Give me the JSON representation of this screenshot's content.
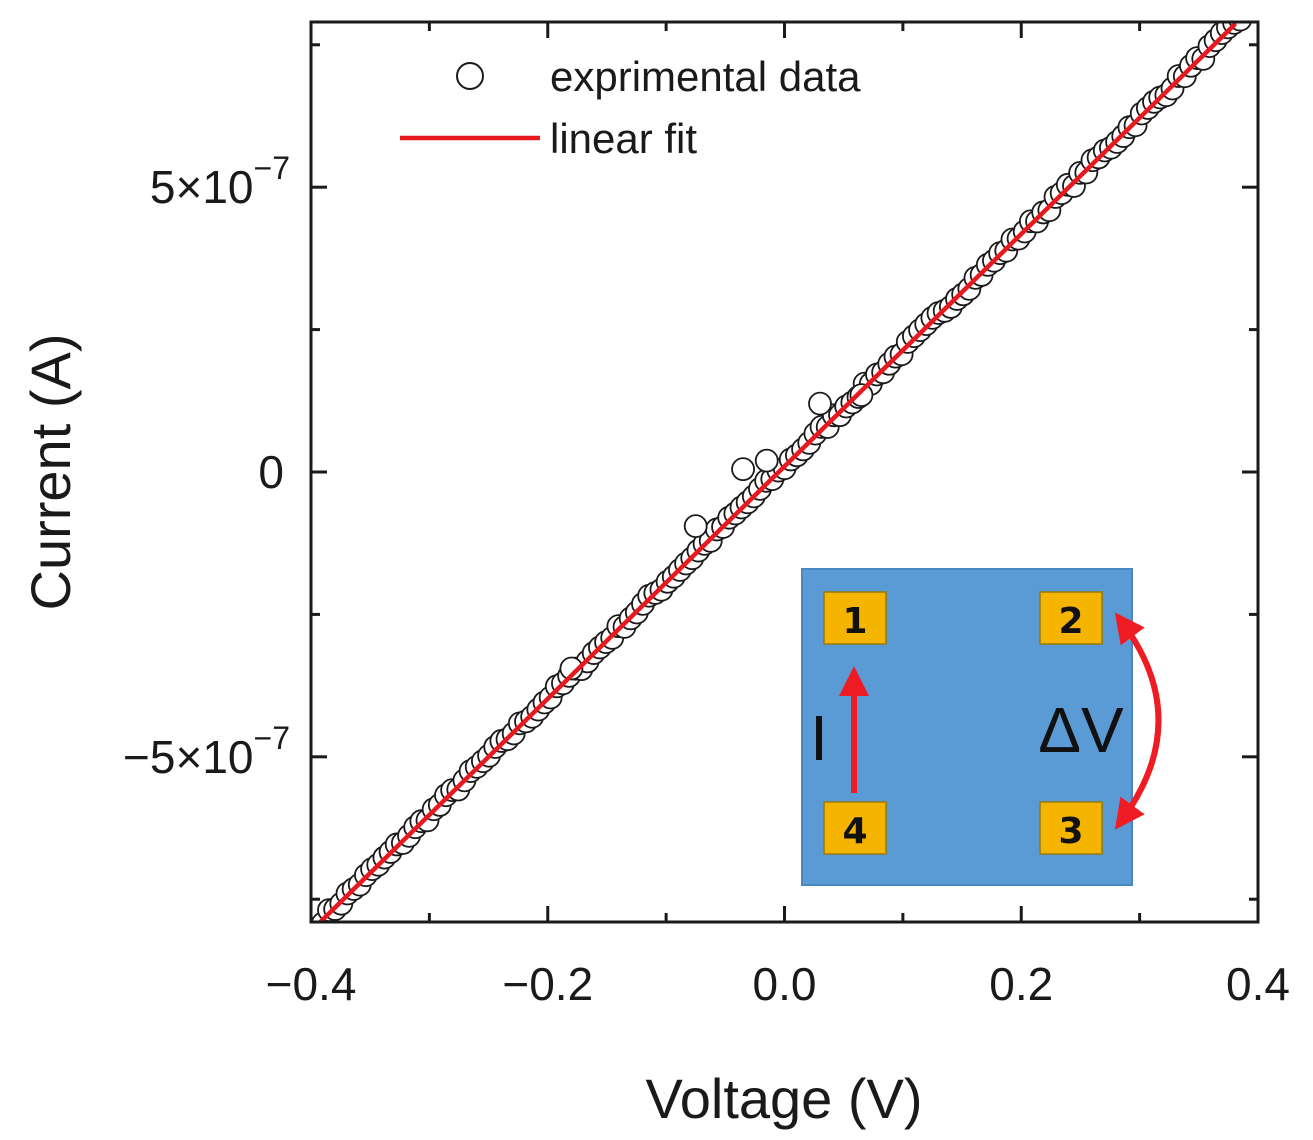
{
  "chart_data": {
    "type": "scatter",
    "title": "",
    "xlabel": "Voltage (V)",
    "ylabel": "Current (A)",
    "xlim": [
      -0.4,
      0.4
    ],
    "ylim": [
      -7.9e-07,
      7.9e-07
    ],
    "x_ticks": [
      {
        "value": -0.4,
        "label": "−0.4"
      },
      {
        "value": -0.2,
        "label": "−0.2"
      },
      {
        "value": 0.0,
        "label": "0.0"
      },
      {
        "value": 0.2,
        "label": "0.2"
      },
      {
        "value": 0.4,
        "label": "0.4"
      }
    ],
    "y_ticks": [
      {
        "value": -5e-07,
        "label": "−5×10",
        "exp": "−7"
      },
      {
        "value": 0,
        "label": "0",
        "exp": ""
      },
      {
        "value": 5e-07,
        "label": "5×10",
        "exp": "−7"
      }
    ],
    "x_minor_step": 0.1,
    "y_minor_step": 2.5e-07,
    "grid": false,
    "legend_position": "top-left",
    "series": [
      {
        "name": "exprimental data",
        "kind": "scatter",
        "marker": "open-circle",
        "color": "#1a1a1a",
        "x_range": [
          -0.39,
          0.385
        ],
        "point_count": 150,
        "slope_A_per_V": 2.04e-06,
        "intercept_A": 1e-08,
        "outliers": [
          {
            "x": -0.18,
            "y": -3.45e-07
          },
          {
            "x": -0.075,
            "y": -9.5e-08
          },
          {
            "x": -0.035,
            "y": 5e-09
          },
          {
            "x": -0.015,
            "y": 2e-08
          },
          {
            "x": 0.03,
            "y": 1.2e-07
          },
          {
            "x": 0.065,
            "y": 1.35e-07
          }
        ]
      },
      {
        "name": "linear fit",
        "kind": "line",
        "color": "#e8181f",
        "x": [
          -0.4,
          0.38
        ],
        "y": [
          -8.06e-07,
          7.85e-07
        ]
      }
    ],
    "inset": {
      "background": "#5b9bd5",
      "pad_color": "#f5b400",
      "arrow_color": "#ef1c24",
      "pads": [
        "1",
        "2",
        "4",
        "3"
      ],
      "current_label": "I",
      "voltage_label": "ΔV"
    }
  }
}
